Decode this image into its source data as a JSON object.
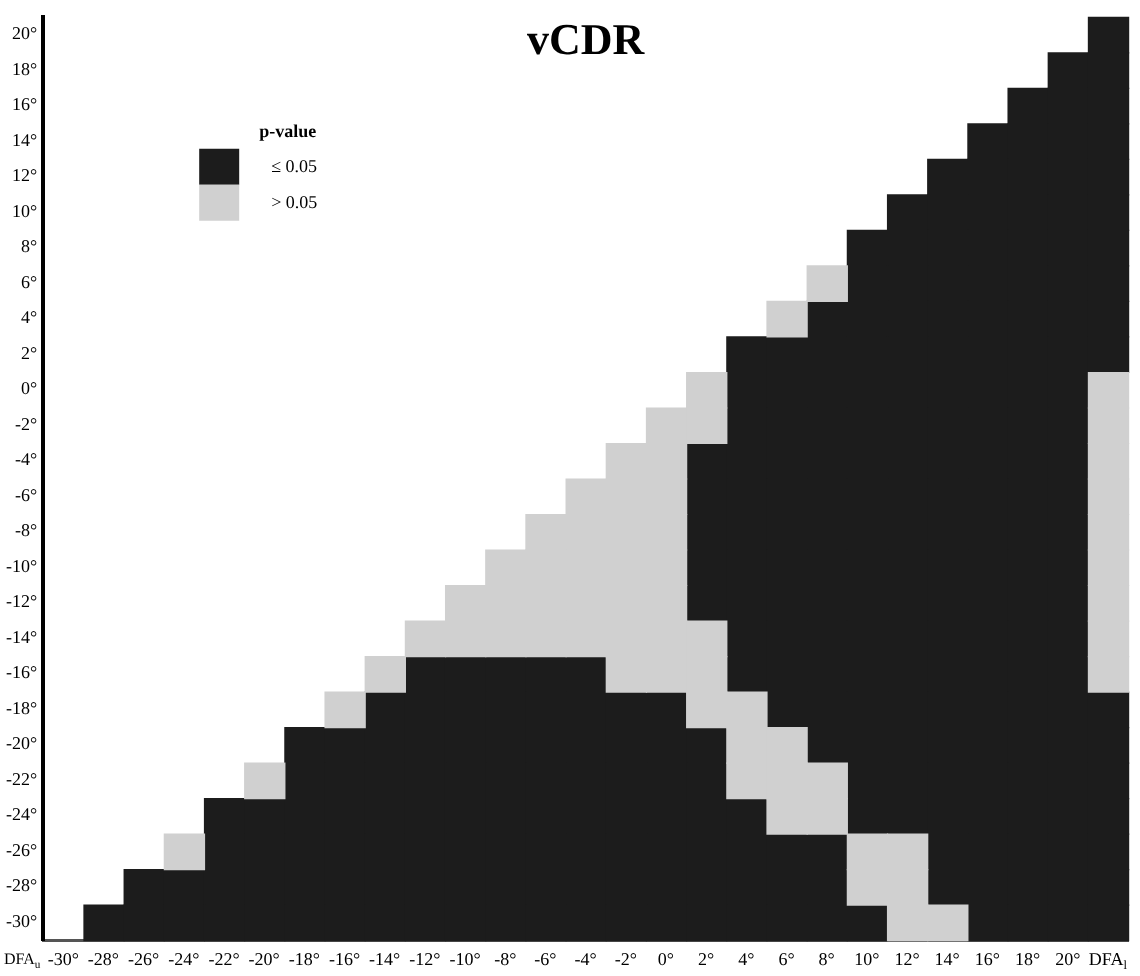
{
  "chart_data": {
    "type": "scatter",
    "title": "vCDR",
    "legend_title": "p-value",
    "legend": "top left",
    "marker": "square",
    "xlim": [
      -31,
      23
    ],
    "ylim": [
      -31,
      21
    ],
    "xticks": [
      {
        "value": -30,
        "label": "-30°"
      },
      {
        "value": -28,
        "label": "-28°"
      },
      {
        "value": -26,
        "label": "-26°"
      },
      {
        "value": -24,
        "label": "-24°"
      },
      {
        "value": -22,
        "label": "-22°"
      },
      {
        "value": -20,
        "label": "-20°"
      },
      {
        "value": -18,
        "label": "-18°"
      },
      {
        "value": -16,
        "label": "-16°"
      },
      {
        "value": -14,
        "label": "-14°"
      },
      {
        "value": -12,
        "label": "-12°"
      },
      {
        "value": -10,
        "label": "-10°"
      },
      {
        "value": -8,
        "label": "-8°"
      },
      {
        "value": -6,
        "label": "-6°"
      },
      {
        "value": -4,
        "label": "-4°"
      },
      {
        "value": -2,
        "label": "-2°"
      },
      {
        "value": 0,
        "label": "0°"
      },
      {
        "value": 2,
        "label": "2°"
      },
      {
        "value": 4,
        "label": "4°"
      },
      {
        "value": 6,
        "label": "6°"
      },
      {
        "value": 8,
        "label": "8°"
      },
      {
        "value": 10,
        "label": "10°"
      },
      {
        "value": 12,
        "label": "12°"
      },
      {
        "value": 14,
        "label": "14°"
      },
      {
        "value": 16,
        "label": "16°"
      },
      {
        "value": 18,
        "label": "18°"
      },
      {
        "value": 20,
        "label": "20°"
      },
      {
        "value": 22,
        "label": "DFA$_{l}$"
      }
    ],
    "yticks": [
      {
        "value": -30,
        "label": "-30°"
      },
      {
        "value": -28,
        "label": "-28°"
      },
      {
        "value": -26,
        "label": "-26°"
      },
      {
        "value": -24,
        "label": "-24°"
      },
      {
        "value": -22,
        "label": "-22°"
      },
      {
        "value": -20,
        "label": "-20°"
      },
      {
        "value": -18,
        "label": "-18°"
      },
      {
        "value": -16,
        "label": "-16°"
      },
      {
        "value": -14,
        "label": "-14°"
      },
      {
        "value": -12,
        "label": "-12°"
      },
      {
        "value": -10,
        "label": "-10°"
      },
      {
        "value": -8,
        "label": "-8°"
      },
      {
        "value": -6,
        "label": "-6°"
      },
      {
        "value": -4,
        "label": "-4°"
      },
      {
        "value": -2,
        "label": "-2°"
      },
      {
        "value": 0,
        "label": "0°"
      },
      {
        "value": 2,
        "label": "2°"
      },
      {
        "value": 4,
        "label": "4°"
      },
      {
        "value": 6,
        "label": "6°"
      },
      {
        "value": 8,
        "label": "8°"
      },
      {
        "value": 10,
        "label": "10°"
      },
      {
        "value": 12,
        "label": "12°"
      },
      {
        "value": 14,
        "label": "14°"
      },
      {
        "value": 16,
        "label": "16°"
      },
      {
        "value": 18,
        "label": "18°"
      },
      {
        "value": 20,
        "label": "20°"
      }
    ],
    "series": [
      {
        "name": "≤ 0.05",
        "color": "#1c1c1c",
        "x": [
          22,
          20,
          22,
          18,
          20,
          22,
          16,
          18,
          20,
          22,
          14,
          16,
          18,
          20,
          22,
          12,
          14,
          16,
          18,
          20,
          22,
          10,
          12,
          14,
          16,
          18,
          20,
          22,
          10,
          12,
          14,
          16,
          18,
          20,
          22,
          8,
          10,
          12,
          14,
          16,
          18,
          20,
          22,
          4,
          6,
          8,
          10,
          12,
          14,
          16,
          18,
          20,
          22,
          4,
          6,
          8,
          10,
          12,
          14,
          16,
          18,
          20,
          4,
          6,
          8,
          10,
          12,
          14,
          16,
          18,
          20,
          2,
          4,
          6,
          8,
          10,
          12,
          14,
          16,
          18,
          20,
          2,
          4,
          6,
          8,
          10,
          12,
          14,
          16,
          18,
          20,
          2,
          4,
          6,
          8,
          10,
          12,
          14,
          16,
          18,
          20,
          2,
          4,
          6,
          8,
          10,
          12,
          14,
          16,
          18,
          20,
          2,
          4,
          6,
          8,
          10,
          12,
          14,
          16,
          18,
          20,
          4,
          6,
          8,
          10,
          12,
          14,
          16,
          18,
          20,
          -12,
          -10,
          -8,
          -6,
          -4,
          4,
          6,
          8,
          10,
          12,
          14,
          16,
          18,
          20,
          -14,
          -12,
          -10,
          -8,
          -6,
          -4,
          -2,
          0,
          6,
          8,
          10,
          12,
          14,
          16,
          18,
          20,
          22,
          -18,
          -16,
          -14,
          -12,
          -10,
          -8,
          -6,
          -4,
          -2,
          0,
          2,
          8,
          10,
          12,
          14,
          16,
          18,
          20,
          22,
          -18,
          -16,
          -14,
          -12,
          -10,
          -8,
          -6,
          -4,
          -2,
          0,
          2,
          10,
          12,
          14,
          16,
          18,
          20,
          22,
          -22,
          -20,
          -18,
          -16,
          -14,
          -12,
          -10,
          -8,
          -6,
          -4,
          -2,
          0,
          2,
          4,
          10,
          12,
          14,
          16,
          18,
          20,
          22,
          -22,
          -20,
          -18,
          -16,
          -14,
          -12,
          -10,
          -8,
          -6,
          -4,
          -2,
          0,
          2,
          4,
          6,
          8,
          14,
          16,
          18,
          20,
          22,
          -26,
          -24,
          -22,
          -20,
          -18,
          -16,
          -14,
          -12,
          -10,
          -8,
          -6,
          -4,
          -2,
          0,
          2,
          4,
          6,
          8,
          14,
          16,
          18,
          20,
          22,
          -28,
          -26,
          -24,
          -22,
          -20,
          -18,
          -16,
          -14,
          -12,
          -10,
          -8,
          -6,
          -4,
          -2,
          0,
          2,
          4,
          6,
          8,
          10,
          16,
          18,
          20,
          22
        ],
        "values": [
          20,
          18,
          18,
          16,
          16,
          16,
          14,
          14,
          14,
          14,
          12,
          12,
          12,
          12,
          12,
          10,
          10,
          10,
          10,
          10,
          10,
          8,
          8,
          8,
          8,
          8,
          8,
          8,
          6,
          6,
          6,
          6,
          6,
          6,
          6,
          4,
          4,
          4,
          4,
          4,
          4,
          4,
          4,
          2,
          2,
          2,
          2,
          2,
          2,
          2,
          2,
          2,
          2,
          0,
          0,
          0,
          0,
          0,
          0,
          0,
          0,
          0,
          -2,
          -2,
          -2,
          -2,
          -2,
          -2,
          -2,
          -2,
          -2,
          -4,
          -4,
          -4,
          -4,
          -4,
          -4,
          -4,
          -4,
          -4,
          -4,
          -6,
          -6,
          -6,
          -6,
          -6,
          -6,
          -6,
          -6,
          -6,
          -6,
          -8,
          -8,
          -8,
          -8,
          -8,
          -8,
          -8,
          -8,
          -8,
          -8,
          -10,
          -10,
          -10,
          -10,
          -10,
          -10,
          -10,
          -10,
          -10,
          -10,
          -12,
          -12,
          -12,
          -12,
          -12,
          -12,
          -12,
          -12,
          -12,
          -12,
          -14,
          -14,
          -14,
          -14,
          -14,
          -14,
          -14,
          -14,
          -14,
          -16,
          -16,
          -16,
          -16,
          -16,
          -16,
          -16,
          -16,
          -16,
          -16,
          -16,
          -16,
          -16,
          -16,
          -18,
          -18,
          -18,
          -18,
          -18,
          -18,
          -18,
          -18,
          -18,
          -18,
          -18,
          -18,
          -18,
          -18,
          -18,
          -18,
          -18,
          -20,
          -20,
          -20,
          -20,
          -20,
          -20,
          -20,
          -20,
          -20,
          -20,
          -20,
          -20,
          -20,
          -20,
          -20,
          -20,
          -20,
          -20,
          -20,
          -22,
          -22,
          -22,
          -22,
          -22,
          -22,
          -22,
          -22,
          -22,
          -22,
          -22,
          -22,
          -22,
          -22,
          -22,
          -22,
          -22,
          -22,
          -24,
          -24,
          -24,
          -24,
          -24,
          -24,
          -24,
          -24,
          -24,
          -24,
          -24,
          -24,
          -24,
          -24,
          -24,
          -24,
          -24,
          -24,
          -24,
          -24,
          -24,
          -26,
          -26,
          -26,
          -26,
          -26,
          -26,
          -26,
          -26,
          -26,
          -26,
          -26,
          -26,
          -26,
          -26,
          -26,
          -26,
          -26,
          -26,
          -26,
          -26,
          -26,
          -28,
          -28,
          -28,
          -28,
          -28,
          -28,
          -28,
          -28,
          -28,
          -28,
          -28,
          -28,
          -28,
          -28,
          -28,
          -28,
          -28,
          -28,
          -28,
          -28,
          -28,
          -28,
          -28,
          -30,
          -30,
          -30,
          -30,
          -30,
          -30,
          -30,
          -30,
          -30,
          -30,
          -30,
          -30,
          -30,
          -30,
          -30,
          -30,
          -30,
          -30,
          -30,
          -30,
          -30,
          -30,
          -30,
          -30
        ]
      },
      {
        "name": "> 0.05",
        "color": "#d0d0d0",
        "x": [
          8,
          6,
          2,
          22,
          0,
          2,
          22,
          -2,
          0,
          22,
          -4,
          -2,
          0,
          22,
          -6,
          -4,
          -2,
          0,
          22,
          -8,
          -6,
          -4,
          -2,
          0,
          22,
          -10,
          -8,
          -6,
          -4,
          -2,
          0,
          22,
          -12,
          -10,
          -8,
          -6,
          -4,
          -2,
          0,
          2,
          22,
          -14,
          -2,
          0,
          2,
          22,
          -16,
          2,
          4,
          4,
          6,
          -20,
          4,
          6,
          8,
          6,
          8,
          -24,
          10,
          12,
          10,
          12,
          12,
          14
        ],
        "values": [
          6,
          4,
          0,
          0,
          -2,
          -2,
          -2,
          -4,
          -4,
          -4,
          -6,
          -6,
          -6,
          -6,
          -8,
          -8,
          -8,
          -8,
          -8,
          -10,
          -10,
          -10,
          -10,
          -10,
          -10,
          -12,
          -12,
          -12,
          -12,
          -12,
          -12,
          -12,
          -14,
          -14,
          -14,
          -14,
          -14,
          -14,
          -14,
          -14,
          -14,
          -16,
          -16,
          -16,
          -16,
          -16,
          -18,
          -18,
          -18,
          -20,
          -20,
          -22,
          -22,
          -22,
          -22,
          -24,
          -24,
          -26,
          -26,
          -26,
          -28,
          -28,
          -30,
          -30
        ]
      }
    ],
    "annotations": [
      "DFA$_{u}$"
    ]
  }
}
